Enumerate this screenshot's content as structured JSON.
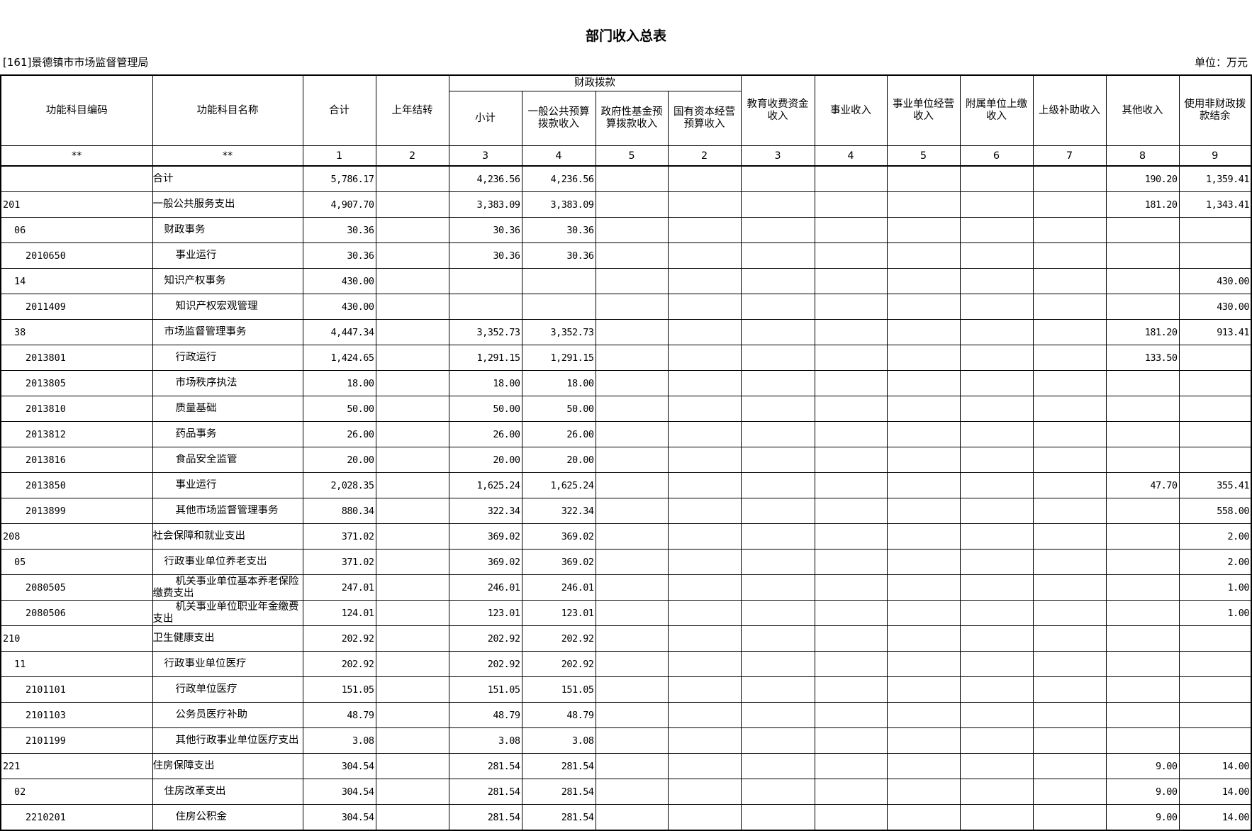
{
  "title": "部门收入总表",
  "org": "[161]景德镇市市场监督管理局",
  "unit": "单位：万元",
  "header": {
    "code": "功能科目编码",
    "name": "功能科目名称",
    "total": "合计",
    "carry": "上年结转",
    "fiscal_group": "财政拨款",
    "subtotal": "小计",
    "general": "一般公共预算拨款收入",
    "gov_fund": "政府性基金预算拨款收入",
    "state_capital": "国有资本经营预算收入",
    "edu": "教育收费资金收入",
    "business": "事业收入",
    "ops": "事业单位经营收入",
    "affiliate": "附属单位上缴收入",
    "upper": "上级补助收入",
    "other": "其他收入",
    "nonfiscal": "使用非财政拨款结余"
  },
  "index_row": [
    "**",
    "**",
    "1",
    "2",
    "3",
    "4",
    "5",
    "2",
    "3",
    "4",
    "5",
    "6",
    "7",
    "8",
    "9"
  ],
  "rows": [
    {
      "level": 0,
      "code": "",
      "name": "合计",
      "v": [
        "5,786.17",
        "",
        "4,236.56",
        "4,236.56",
        "",
        "",
        "",
        "",
        "",
        "",
        "",
        "190.20",
        "1,359.41"
      ]
    },
    {
      "level": 0,
      "code": "201",
      "name": "一般公共服务支出",
      "v": [
        "4,907.70",
        "",
        "3,383.09",
        "3,383.09",
        "",
        "",
        "",
        "",
        "",
        "",
        "",
        "181.20",
        "1,343.41"
      ]
    },
    {
      "level": 1,
      "code": "06",
      "name": "财政事务",
      "v": [
        "30.36",
        "",
        "30.36",
        "30.36",
        "",
        "",
        "",
        "",
        "",
        "",
        "",
        "",
        ""
      ]
    },
    {
      "level": 2,
      "code": "2010650",
      "name": "事业运行",
      "v": [
        "30.36",
        "",
        "30.36",
        "30.36",
        "",
        "",
        "",
        "",
        "",
        "",
        "",
        "",
        ""
      ]
    },
    {
      "level": 1,
      "code": "14",
      "name": "知识产权事务",
      "v": [
        "430.00",
        "",
        "",
        "",
        "",
        "",
        "",
        "",
        "",
        "",
        "",
        "",
        "430.00"
      ]
    },
    {
      "level": 2,
      "code": "2011409",
      "name": "知识产权宏观管理",
      "v": [
        "430.00",
        "",
        "",
        "",
        "",
        "",
        "",
        "",
        "",
        "",
        "",
        "",
        "430.00"
      ]
    },
    {
      "level": 1,
      "code": "38",
      "name": "市场监督管理事务",
      "v": [
        "4,447.34",
        "",
        "3,352.73",
        "3,352.73",
        "",
        "",
        "",
        "",
        "",
        "",
        "",
        "181.20",
        "913.41"
      ]
    },
    {
      "level": 2,
      "code": "2013801",
      "name": "行政运行",
      "v": [
        "1,424.65",
        "",
        "1,291.15",
        "1,291.15",
        "",
        "",
        "",
        "",
        "",
        "",
        "",
        "133.50",
        ""
      ]
    },
    {
      "level": 2,
      "code": "2013805",
      "name": "市场秩序执法",
      "v": [
        "18.00",
        "",
        "18.00",
        "18.00",
        "",
        "",
        "",
        "",
        "",
        "",
        "",
        "",
        ""
      ]
    },
    {
      "level": 2,
      "code": "2013810",
      "name": "质量基础",
      "v": [
        "50.00",
        "",
        "50.00",
        "50.00",
        "",
        "",
        "",
        "",
        "",
        "",
        "",
        "",
        ""
      ]
    },
    {
      "level": 2,
      "code": "2013812",
      "name": "药品事务",
      "v": [
        "26.00",
        "",
        "26.00",
        "26.00",
        "",
        "",
        "",
        "",
        "",
        "",
        "",
        "",
        ""
      ]
    },
    {
      "level": 2,
      "code": "2013816",
      "name": "食品安全监管",
      "v": [
        "20.00",
        "",
        "20.00",
        "20.00",
        "",
        "",
        "",
        "",
        "",
        "",
        "",
        "",
        ""
      ]
    },
    {
      "level": 2,
      "code": "2013850",
      "name": "事业运行",
      "v": [
        "2,028.35",
        "",
        "1,625.24",
        "1,625.24",
        "",
        "",
        "",
        "",
        "",
        "",
        "",
        "47.70",
        "355.41"
      ]
    },
    {
      "level": 2,
      "code": "2013899",
      "name": "其他市场监督管理事务",
      "v": [
        "880.34",
        "",
        "322.34",
        "322.34",
        "",
        "",
        "",
        "",
        "",
        "",
        "",
        "",
        "558.00"
      ]
    },
    {
      "level": 0,
      "code": "208",
      "name": "社会保障和就业支出",
      "v": [
        "371.02",
        "",
        "369.02",
        "369.02",
        "",
        "",
        "",
        "",
        "",
        "",
        "",
        "",
        "2.00"
      ]
    },
    {
      "level": 1,
      "code": "05",
      "name": "行政事业单位养老支出",
      "v": [
        "371.02",
        "",
        "369.02",
        "369.02",
        "",
        "",
        "",
        "",
        "",
        "",
        "",
        "",
        "2.00"
      ]
    },
    {
      "level": 2,
      "code": "2080505",
      "name": "机关事业单位基本养老保险缴费支出",
      "v": [
        "247.01",
        "",
        "246.01",
        "246.01",
        "",
        "",
        "",
        "",
        "",
        "",
        "",
        "",
        "1.00"
      ]
    },
    {
      "level": 2,
      "code": "2080506",
      "name": "机关事业单位职业年金缴费支出",
      "v": [
        "124.01",
        "",
        "123.01",
        "123.01",
        "",
        "",
        "",
        "",
        "",
        "",
        "",
        "",
        "1.00"
      ]
    },
    {
      "level": 0,
      "code": "210",
      "name": "卫生健康支出",
      "v": [
        "202.92",
        "",
        "202.92",
        "202.92",
        "",
        "",
        "",
        "",
        "",
        "",
        "",
        "",
        ""
      ]
    },
    {
      "level": 1,
      "code": "11",
      "name": "行政事业单位医疗",
      "v": [
        "202.92",
        "",
        "202.92",
        "202.92",
        "",
        "",
        "",
        "",
        "",
        "",
        "",
        "",
        ""
      ]
    },
    {
      "level": 2,
      "code": "2101101",
      "name": "行政单位医疗",
      "v": [
        "151.05",
        "",
        "151.05",
        "151.05",
        "",
        "",
        "",
        "",
        "",
        "",
        "",
        "",
        ""
      ]
    },
    {
      "level": 2,
      "code": "2101103",
      "name": "公务员医疗补助",
      "v": [
        "48.79",
        "",
        "48.79",
        "48.79",
        "",
        "",
        "",
        "",
        "",
        "",
        "",
        "",
        ""
      ]
    },
    {
      "level": 2,
      "code": "2101199",
      "name": "其他行政事业单位医疗支出",
      "v": [
        "3.08",
        "",
        "3.08",
        "3.08",
        "",
        "",
        "",
        "",
        "",
        "",
        "",
        "",
        ""
      ]
    },
    {
      "level": 0,
      "code": "221",
      "name": "住房保障支出",
      "v": [
        "304.54",
        "",
        "281.54",
        "281.54",
        "",
        "",
        "",
        "",
        "",
        "",
        "",
        "9.00",
        "14.00"
      ]
    },
    {
      "level": 1,
      "code": "02",
      "name": "住房改革支出",
      "v": [
        "304.54",
        "",
        "281.54",
        "281.54",
        "",
        "",
        "",
        "",
        "",
        "",
        "",
        "9.00",
        "14.00"
      ]
    },
    {
      "level": 2,
      "code": "2210201",
      "name": "住房公积金",
      "v": [
        "304.54",
        "",
        "281.54",
        "281.54",
        "",
        "",
        "",
        "",
        "",
        "",
        "",
        "9.00",
        "14.00"
      ]
    }
  ]
}
